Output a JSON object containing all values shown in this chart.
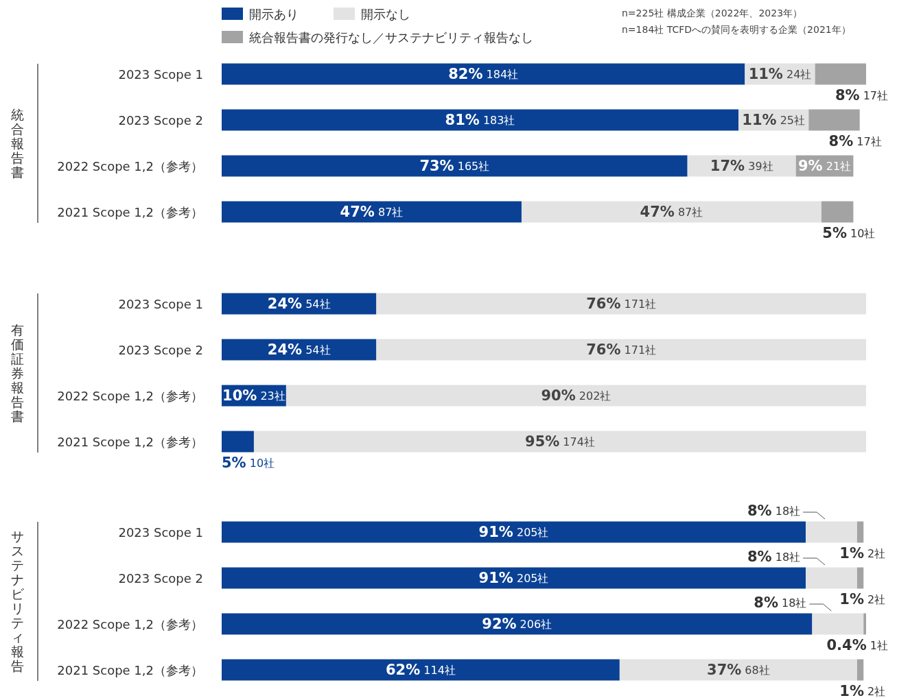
{
  "chart_data": [
    {
      "type": "bar",
      "orientation": "horizontal",
      "stacked": true,
      "ylabel": "統合報告書",
      "legend": "top",
      "annotations": [
        "n=225社 構成企業（2022年、2023年）",
        "n=184社 TCFDへの賛同を表明する企業（2021年）"
      ],
      "categories": [
        "2023 Scope 1",
        "2023 Scope 2",
        "2022 Scope 1,2（参考）",
        "2021 Scope 1,2（参考）"
      ],
      "series": [
        {
          "name": "開示あり",
          "color": "#0a4194",
          "values": [
            82,
            81,
            73,
            47
          ],
          "value_labels": [
            "82% 184社",
            "81% 183社",
            "73% 165社",
            "47% 87社"
          ]
        },
        {
          "name": "開示なし",
          "color": "#e3e3e3",
          "values": [
            11,
            11,
            17,
            47
          ],
          "value_labels": [
            "11% 24社",
            "11% 25社",
            "17% 39社",
            "47% 87社"
          ]
        },
        {
          "name": "統合報告書の発行なし／サステナビリティ報告なし",
          "color": "#a3a3a3",
          "values": [
            8,
            8,
            9,
            5
          ],
          "value_labels": [
            "8% 17社",
            "8% 17社",
            "9% 21社",
            "5% 10社"
          ]
        }
      ]
    },
    {
      "type": "bar",
      "orientation": "horizontal",
      "stacked": true,
      "ylabel": "有価証券報告書",
      "categories": [
        "2023 Scope 1",
        "2023 Scope 2",
        "2022 Scope 1,2（参考）",
        "2021 Scope 1,2（参考）"
      ],
      "series": [
        {
          "color": "#0a4194",
          "values": [
            24,
            24,
            10,
            5
          ],
          "value_labels": [
            "24% 54社",
            "24% 54社",
            "10% 23社",
            "5% 10社"
          ]
        },
        {
          "color": "#e3e3e3",
          "values": [
            76,
            76,
            90,
            95
          ],
          "value_labels": [
            "76% 171社",
            "76% 171社",
            "90% 202社",
            "95% 174社"
          ]
        }
      ]
    },
    {
      "type": "bar",
      "orientation": "horizontal",
      "stacked": true,
      "ylabel": "サステナビリティ報告",
      "categories": [
        "2023 Scope 1",
        "2023 Scope 2",
        "2022 Scope 1,2（参考）",
        "2021 Scope 1,2（参考）"
      ],
      "series": [
        {
          "color": "#0a4194",
          "values": [
            91,
            91,
            92,
            62
          ],
          "value_labels": [
            "91% 205社",
            "91% 205社",
            "92% 206社",
            "62% 114社"
          ]
        },
        {
          "color": "#e3e3e3",
          "values": [
            8,
            8,
            8,
            37
          ],
          "value_labels": [
            "8% 18社",
            "8% 18社",
            "8% 18社",
            "37% 68社"
          ]
        },
        {
          "color": "#a3a3a3",
          "values": [
            1,
            1,
            0.4,
            1
          ],
          "value_labels": [
            "1% 2社",
            "1% 2社",
            "0.4% 1社",
            "1% 2社"
          ]
        }
      ]
    }
  ]
}
